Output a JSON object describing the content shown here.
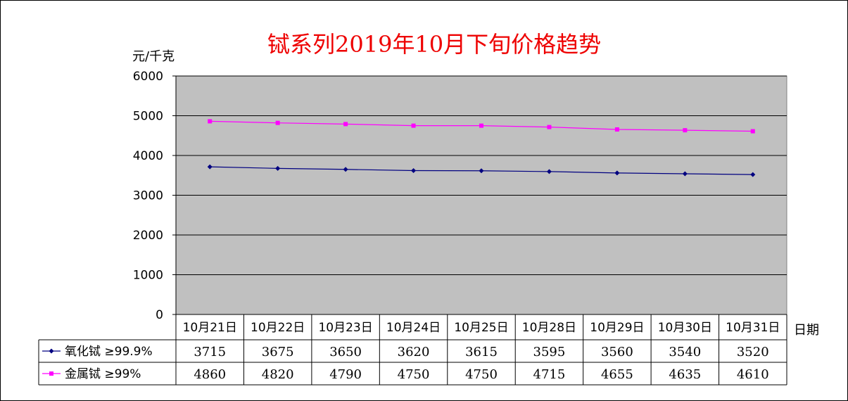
{
  "chart_data": {
    "type": "line",
    "title": "铽系列2019年10月下旬价格趋势",
    "ylabel": "元/千克",
    "xlabel": "日期",
    "categories": [
      "10月21日",
      "10月22日",
      "10月23日",
      "10月24日",
      "10月25日",
      "10月28日",
      "10月29日",
      "10月30日",
      "10月31日"
    ],
    "ylim": [
      0,
      6000
    ],
    "yticks": [
      0,
      1000,
      2000,
      3000,
      4000,
      5000,
      6000
    ],
    "grid": true,
    "series": [
      {
        "name": "氧化铽 ≥99.9%",
        "color": "#000080",
        "marker": "diamond",
        "values": [
          3715,
          3675,
          3650,
          3620,
          3615,
          3595,
          3560,
          3540,
          3520
        ]
      },
      {
        "name": "金属铽 ≥99%",
        "color": "#ff00ff",
        "marker": "square",
        "values": [
          4860,
          4820,
          4790,
          4750,
          4750,
          4715,
          4655,
          4635,
          4610
        ]
      }
    ],
    "plot_background": "#c0c0c0",
    "data_table": true
  }
}
